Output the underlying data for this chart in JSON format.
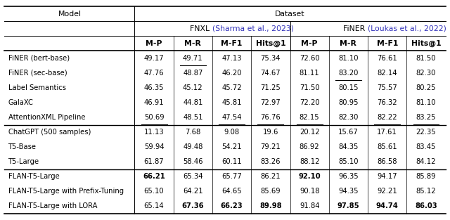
{
  "sub_header_1_black": "FNXL ",
  "sub_header_1_blue": "(Sharma et al., 2023)",
  "sub_header_2_black": "FiNER ",
  "sub_header_2_blue": "(Loukas et al., 2022)",
  "blue_color": "#3333BB",
  "metrics": [
    "M-P",
    "M-R",
    "M-F1",
    "Hits@1",
    "M-P",
    "M-R",
    "M-F1",
    "Hits@1"
  ],
  "groups": [
    {
      "rows": [
        {
          "model": "FiNER (bert-base)",
          "values": [
            "49.17",
            "49.71",
            "47.13",
            "75.34",
            "72.60",
            "81.10",
            "76.61",
            "81.50"
          ],
          "underline": [
            false,
            true,
            false,
            false,
            false,
            false,
            false,
            false
          ],
          "bold": [
            false,
            false,
            false,
            false,
            false,
            false,
            false,
            false
          ]
        },
        {
          "model": "FiNER (sec-base)",
          "values": [
            "47.76",
            "48.87",
            "46.20",
            "74.67",
            "81.11",
            "83.20",
            "82.14",
            "82.30"
          ],
          "underline": [
            false,
            false,
            false,
            false,
            false,
            true,
            false,
            false
          ],
          "bold": [
            false,
            false,
            false,
            false,
            false,
            false,
            false,
            false
          ]
        },
        {
          "model": "Label Semantics",
          "values": [
            "46.35",
            "45.12",
            "45.72",
            "71.25",
            "71.50",
            "80.15",
            "75.57",
            "80.25"
          ],
          "underline": [
            false,
            false,
            false,
            false,
            false,
            false,
            false,
            false
          ],
          "bold": [
            false,
            false,
            false,
            false,
            false,
            false,
            false,
            false
          ]
        },
        {
          "model": "GalaXC",
          "values": [
            "46.91",
            "44.81",
            "45.81",
            "72.97",
            "72.20",
            "80.95",
            "76.32",
            "81.10"
          ],
          "underline": [
            false,
            false,
            false,
            false,
            false,
            false,
            false,
            false
          ],
          "bold": [
            false,
            false,
            false,
            false,
            false,
            false,
            false,
            false
          ]
        },
        {
          "model": "AttentionXML Pipeline",
          "values": [
            "50.69",
            "48.51",
            "47.54",
            "76.76",
            "82.15",
            "82.30",
            "82.22",
            "83.25"
          ],
          "underline": [
            true,
            false,
            true,
            true,
            true,
            false,
            true,
            true
          ],
          "bold": [
            false,
            false,
            false,
            false,
            false,
            false,
            false,
            false
          ]
        }
      ]
    },
    {
      "rows": [
        {
          "model": "ChatGPT (500 samples)",
          "values": [
            "11.13",
            "7.68",
            "9.08",
            "19.6",
            "20.12",
            "15.67",
            "17.61",
            "22.35"
          ],
          "underline": [
            false,
            false,
            false,
            false,
            false,
            false,
            false,
            false
          ],
          "bold": [
            false,
            false,
            false,
            false,
            false,
            false,
            false,
            false
          ]
        },
        {
          "model": "T5-Base",
          "values": [
            "59.94",
            "49.48",
            "54.21",
            "79.21",
            "86.92",
            "84.35",
            "85.61",
            "83.45"
          ],
          "underline": [
            false,
            false,
            false,
            false,
            false,
            false,
            false,
            false
          ],
          "bold": [
            false,
            false,
            false,
            false,
            false,
            false,
            false,
            false
          ]
        },
        {
          "model": "T5-Large",
          "values": [
            "61.87",
            "58.46",
            "60.11",
            "83.26",
            "88.12",
            "85.10",
            "86.58",
            "84.12"
          ],
          "underline": [
            false,
            false,
            false,
            false,
            false,
            false,
            false,
            false
          ],
          "bold": [
            false,
            false,
            false,
            false,
            false,
            false,
            false,
            false
          ]
        }
      ]
    },
    {
      "rows": [
        {
          "model": "FLAN-T5-Large",
          "values": [
            "66.21",
            "65.34",
            "65.77",
            "86.21",
            "92.10",
            "96.35",
            "94.17",
            "85.89"
          ],
          "underline": [
            false,
            false,
            false,
            false,
            false,
            false,
            false,
            false
          ],
          "bold": [
            true,
            false,
            false,
            false,
            true,
            false,
            false,
            false
          ]
        },
        {
          "model": "FLAN-T5-Large with Prefix-Tuning",
          "values": [
            "65.10",
            "64.21",
            "64.65",
            "85.69",
            "90.18",
            "94.35",
            "92.21",
            "85.12"
          ],
          "underline": [
            false,
            false,
            false,
            false,
            false,
            false,
            false,
            false
          ],
          "bold": [
            false,
            false,
            false,
            false,
            false,
            false,
            false,
            false
          ]
        },
        {
          "model": "FLAN-T5-Large with LORA",
          "values": [
            "65.14",
            "67.36",
            "66.23",
            "89.98",
            "91.84",
            "97.85",
            "94.74",
            "86.03"
          ],
          "underline": [
            false,
            false,
            false,
            false,
            false,
            false,
            false,
            false
          ],
          "bold": [
            false,
            true,
            true,
            true,
            false,
            true,
            true,
            true
          ]
        }
      ]
    }
  ],
  "bg_color": "#ffffff",
  "figsize": [
    6.4,
    3.13
  ],
  "dpi": 100
}
